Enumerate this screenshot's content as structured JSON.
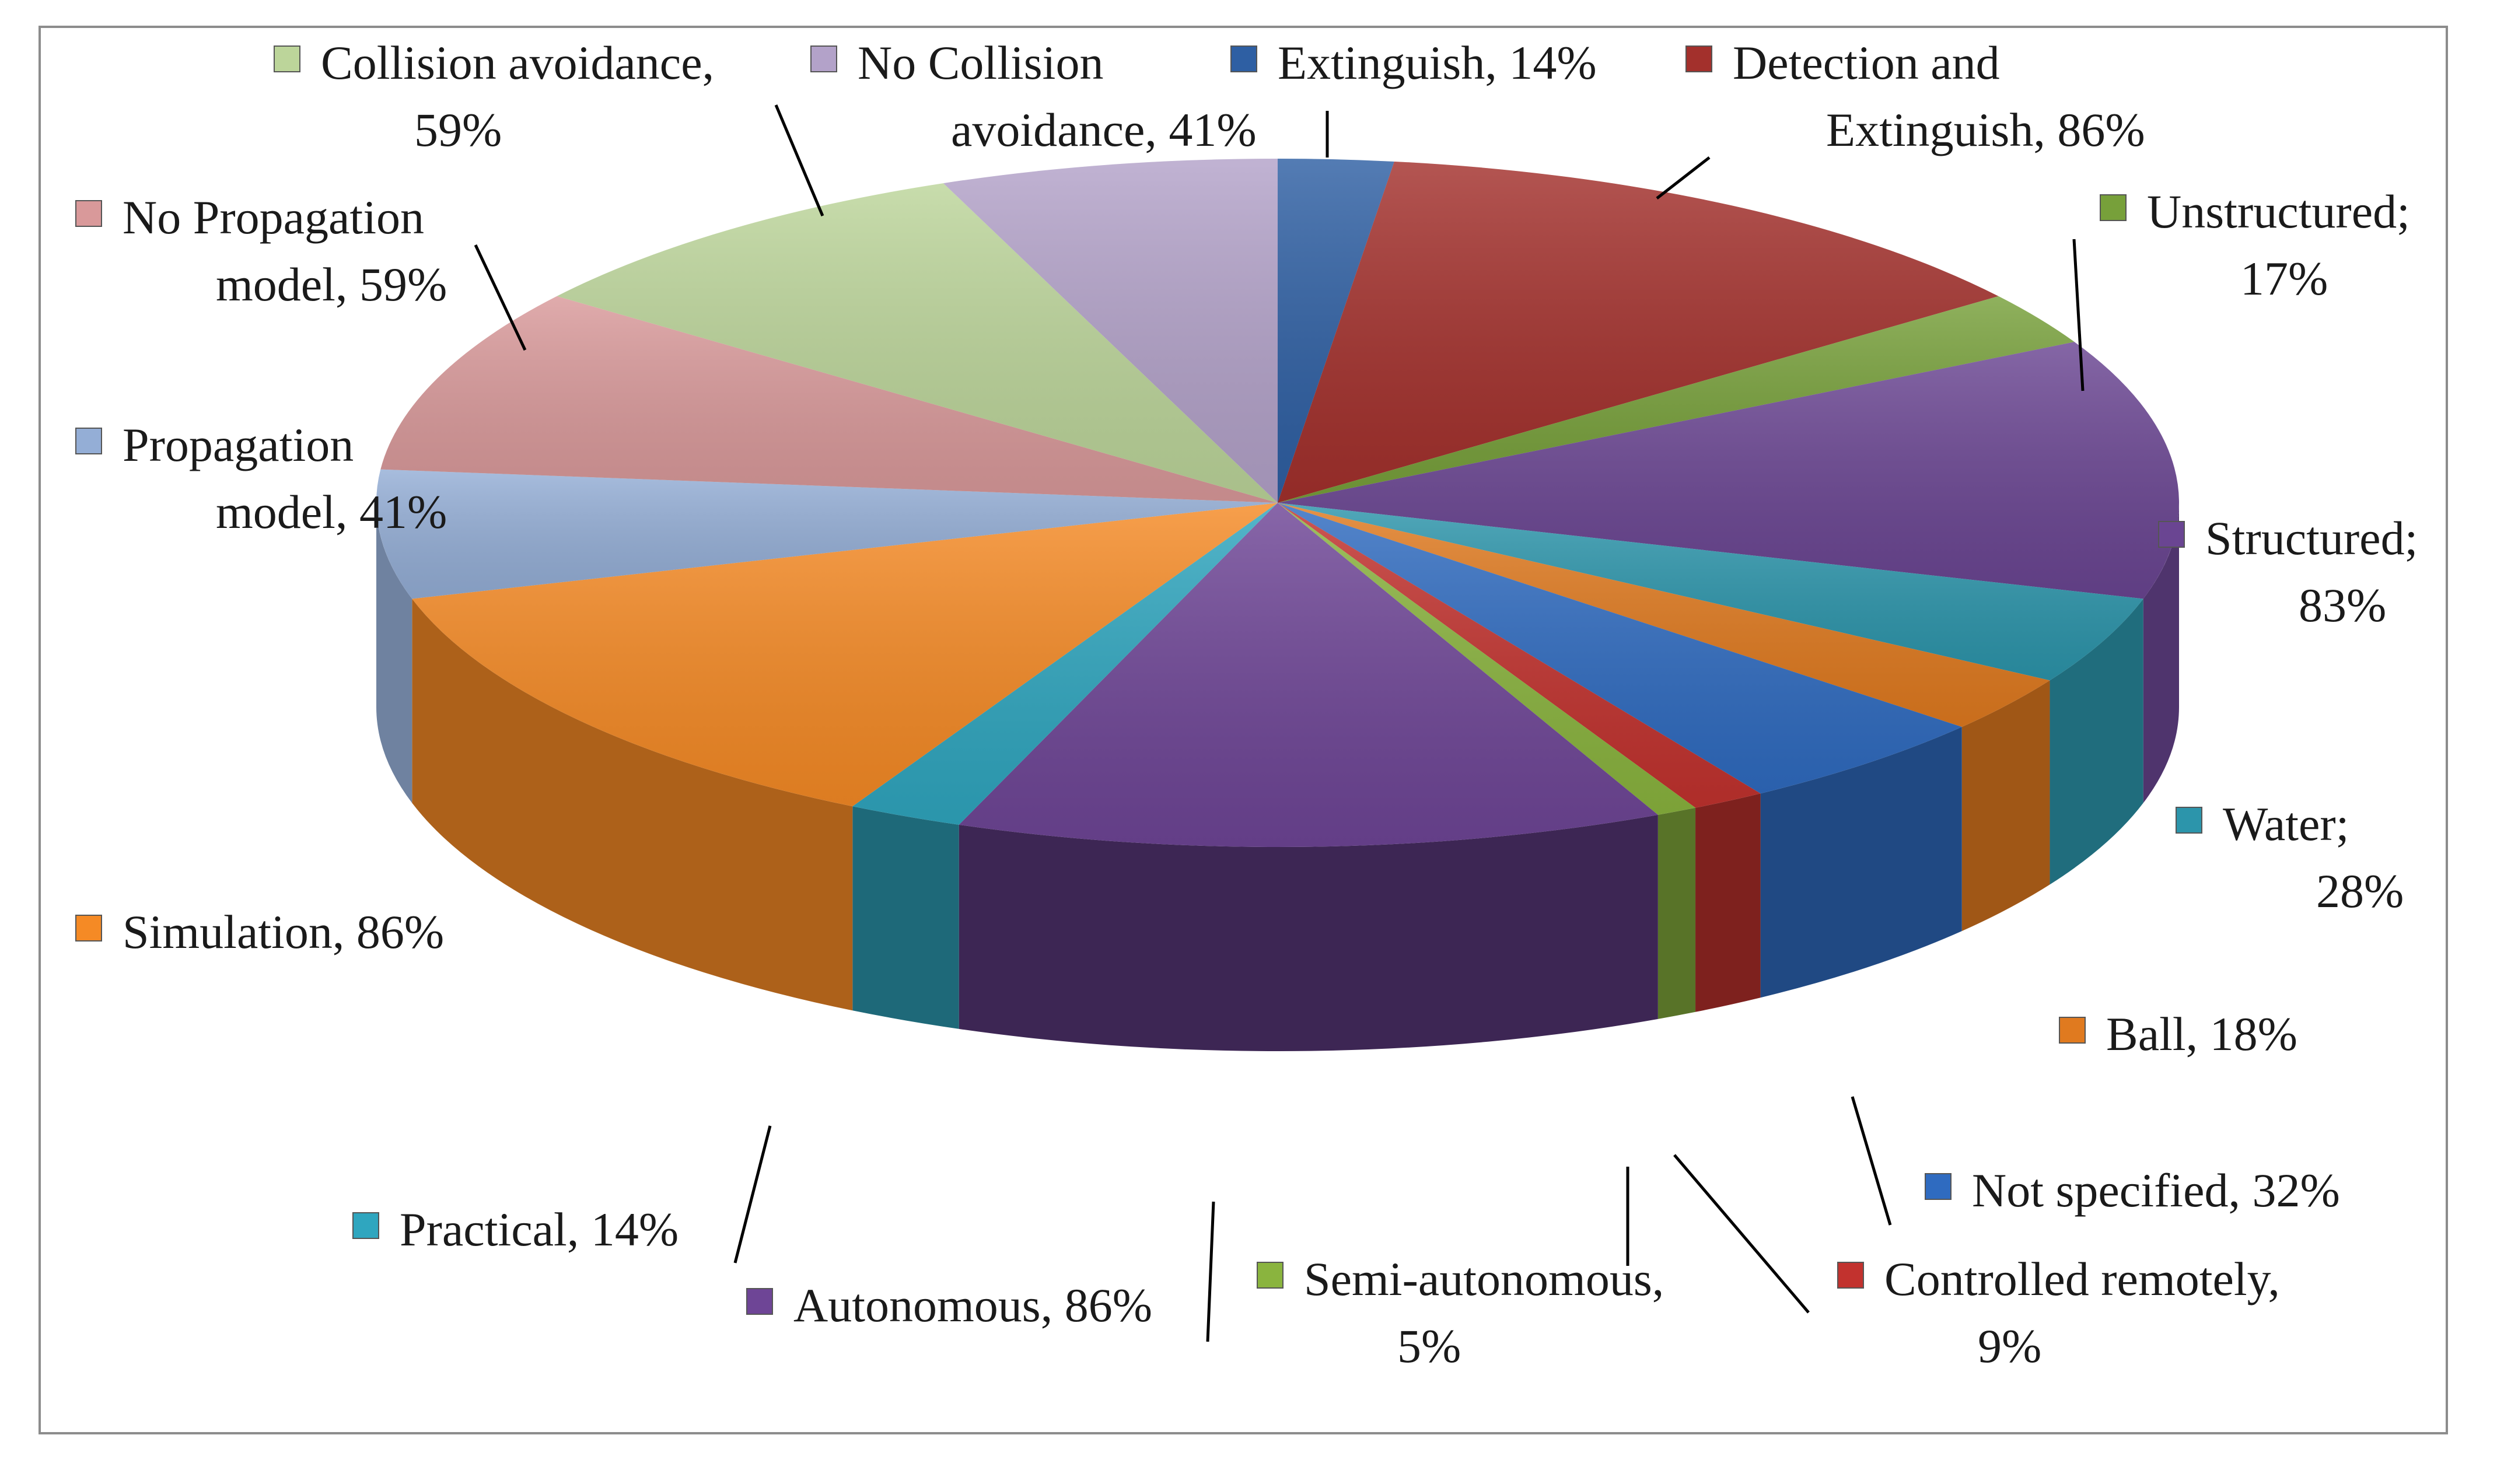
{
  "chart_data": {
    "type": "pie",
    "style": "3d-exploded-ring",
    "legend": "labels-around-pie",
    "slices": [
      {
        "label": "Extinguish, 14%",
        "percent": 14,
        "color": "#2e5fa3"
      },
      {
        "label": "Detection and Extinguish, 86%",
        "percent": 86,
        "color": "#a3302c"
      },
      {
        "label": "Unstructured; 17%",
        "percent": 17,
        "color": "#77a03a"
      },
      {
        "label": "Structured; 83%",
        "percent": 83,
        "color": "#6a4592"
      },
      {
        "label": "Water; 28%",
        "percent": 28,
        "color": "#2c95ab"
      },
      {
        "label": "Ball, 18%",
        "percent": 18,
        "color": "#e07a1f"
      },
      {
        "label": "Not specified, 32%",
        "percent": 32,
        "color": "#2f6bc0"
      },
      {
        "label": "Controlled remotely, 9%",
        "percent": 9,
        "color": "#c2322e"
      },
      {
        "label": "Semi-autonomous, 5%",
        "percent": 5,
        "color": "#8ab43e"
      },
      {
        "label": "Autonomous, 86%",
        "percent": 86,
        "color": "#6e4596"
      },
      {
        "label": "Practical, 14%",
        "percent": 14,
        "color": "#2fa6bf"
      },
      {
        "label": "Simulation, 86%",
        "percent": 86,
        "color": "#f58a25"
      },
      {
        "label": "Propagation model, 41%",
        "percent": 41,
        "color": "#94aed6"
      },
      {
        "label": "No Propagation model, 59%",
        "percent": 59,
        "color": "#d9999a"
      },
      {
        "label": "Collision avoidance, 59%",
        "percent": 59,
        "color": "#bcd59a"
      },
      {
        "label": "No Collision avoidance, 41%",
        "percent": 41,
        "color": "#b3a2c9"
      }
    ]
  },
  "labels": [
    {
      "lines": [
        "Collision avoidance,",
        "59%"
      ]
    },
    {
      "lines": [
        "No Collision",
        "avoidance, 41%"
      ]
    },
    {
      "lines": [
        "Extinguish, 14%"
      ]
    },
    {
      "lines": [
        "Detection and",
        "Extinguish, 86%"
      ]
    },
    {
      "lines": [
        "Unstructured;",
        "17%"
      ]
    },
    {
      "lines": [
        "No Propagation",
        "model, 59%"
      ]
    },
    {
      "lines": [
        "Propagation",
        "model, 41%"
      ]
    },
    {
      "lines": [
        "Structured;",
        "83%"
      ]
    },
    {
      "lines": [
        "Water;",
        "28%"
      ]
    },
    {
      "lines": [
        "Simulation, 86%"
      ]
    },
    {
      "lines": [
        "Ball, 18%"
      ]
    },
    {
      "lines": [
        "Not specified, 32%"
      ]
    },
    {
      "lines": [
        "Practical, 14%"
      ]
    },
    {
      "lines": [
        "Controlled remotely,",
        "9%"
      ]
    },
    {
      "lines": [
        "Semi-autonomous,",
        "5%"
      ]
    },
    {
      "lines": [
        "Autonomous, 86%"
      ]
    }
  ]
}
